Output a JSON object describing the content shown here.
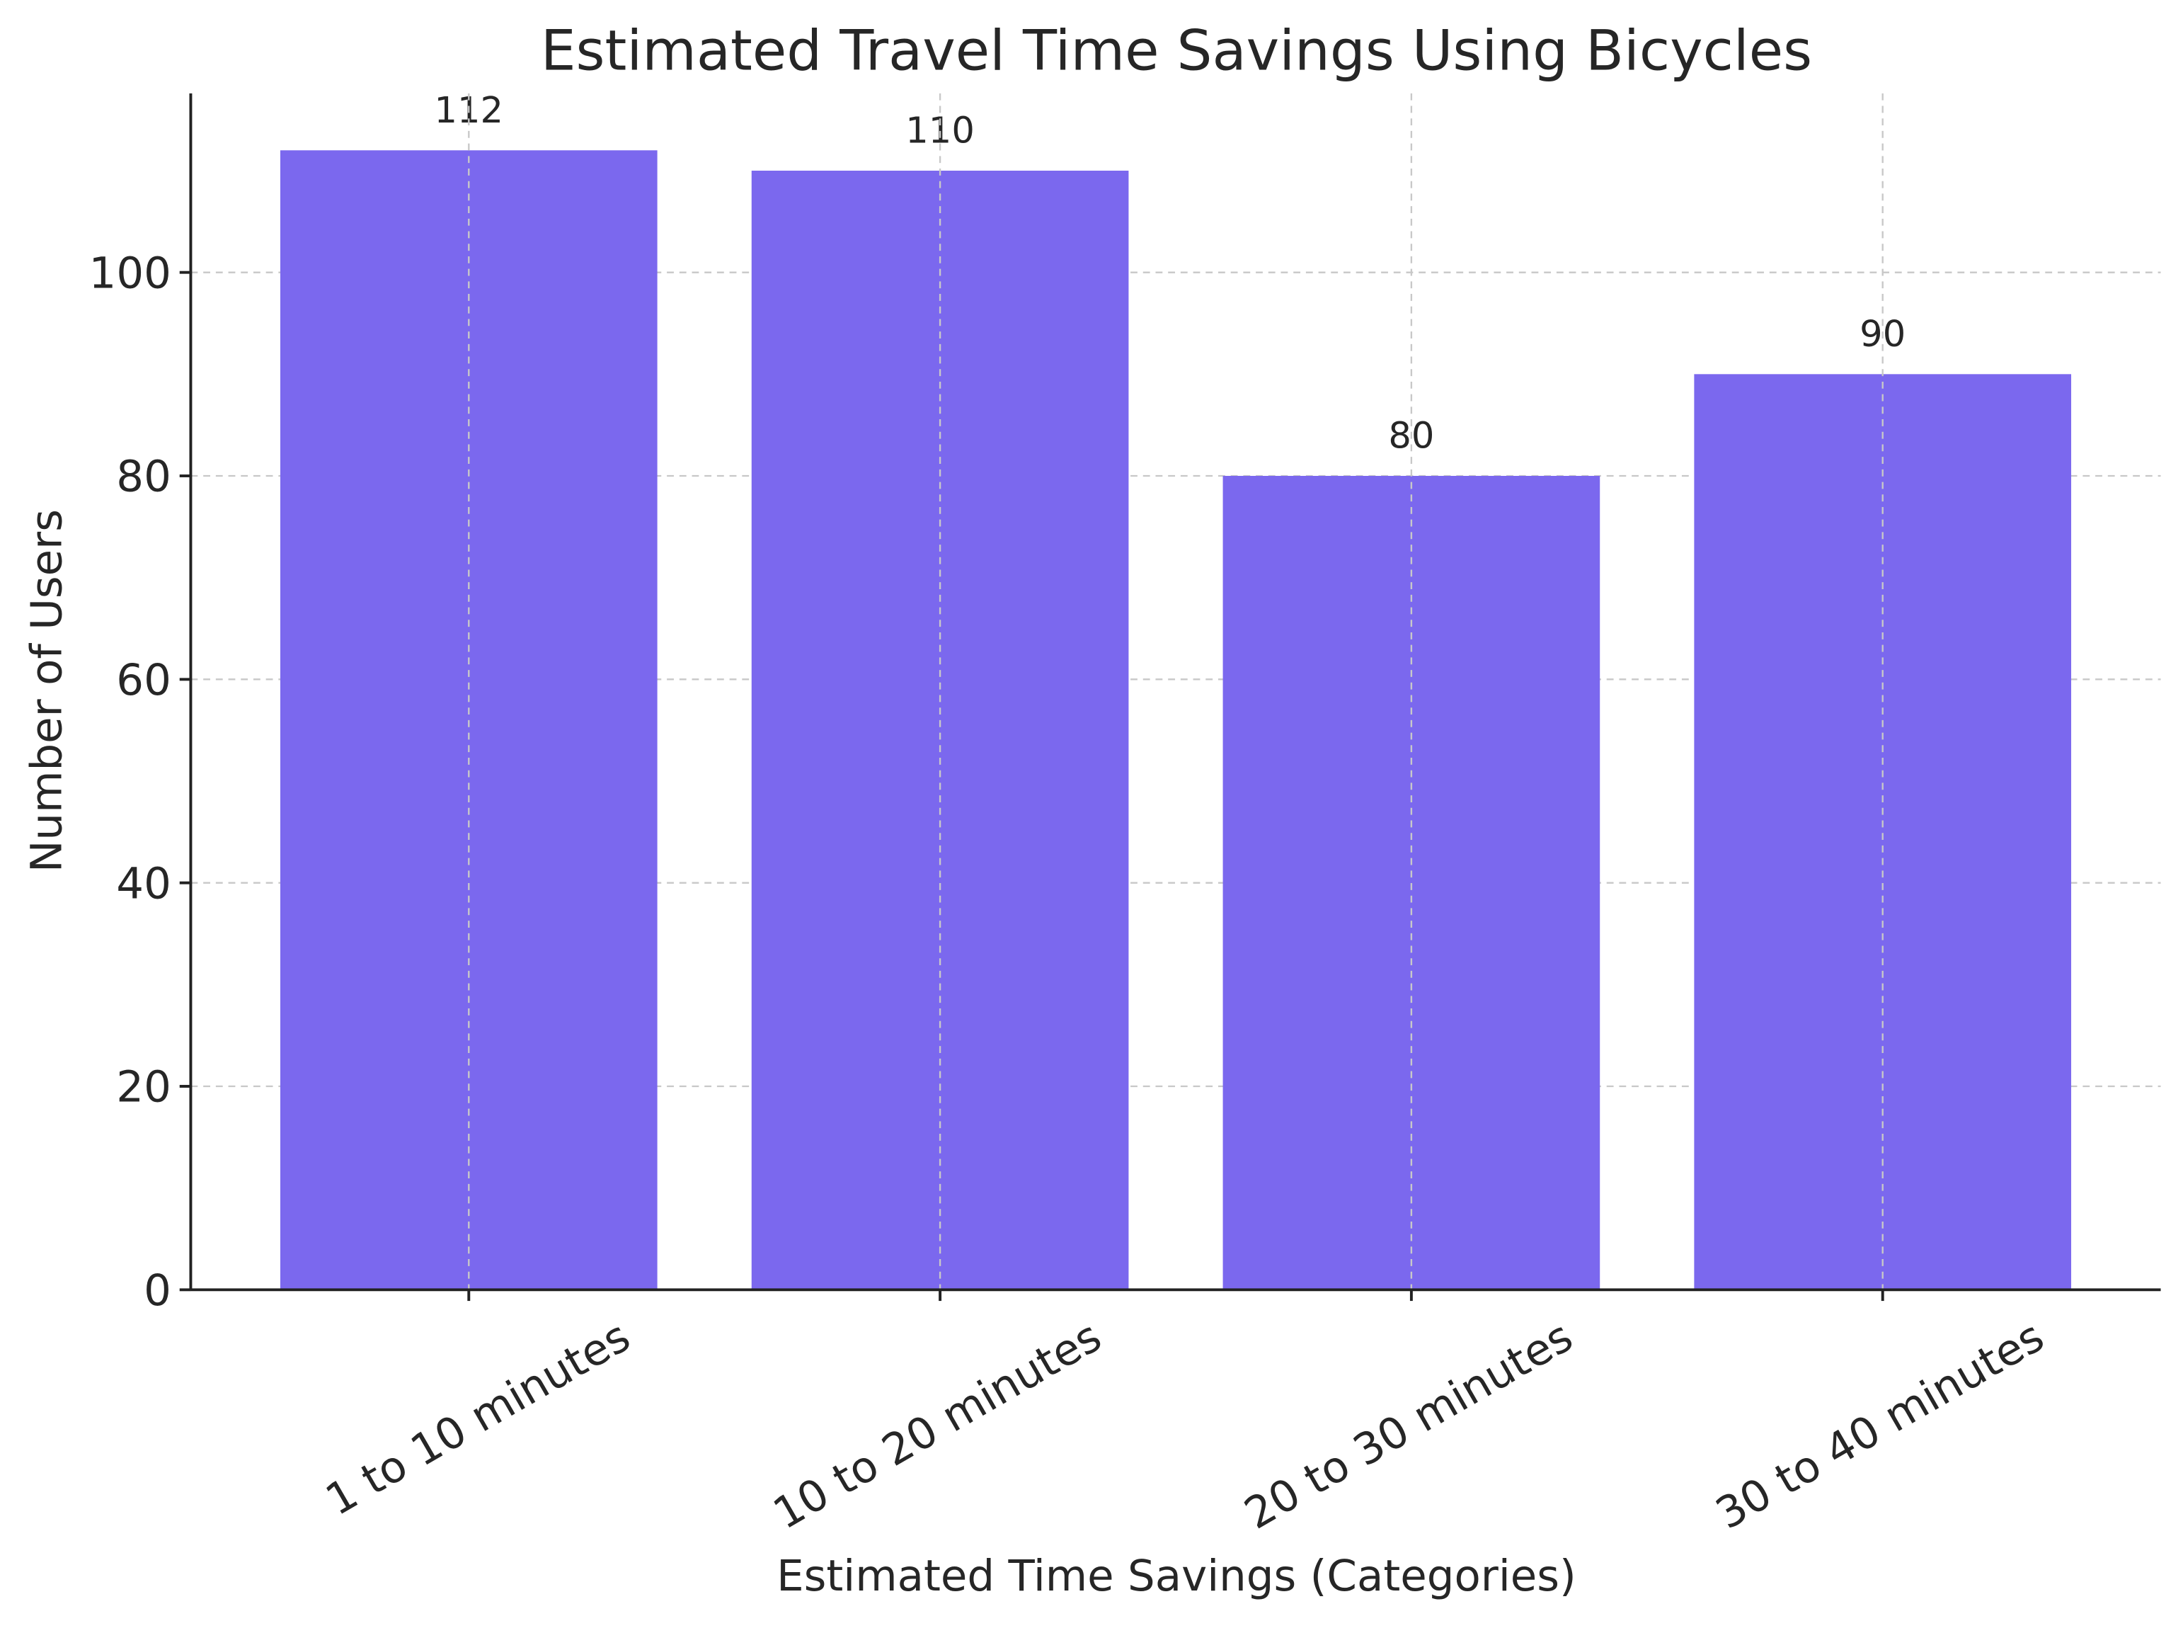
{
  "chart_data": {
    "type": "bar",
    "title": "Estimated Travel Time Savings Using Bicycles",
    "xlabel": "Estimated Time Savings (Categories)",
    "ylabel": "Number of Users",
    "categories": [
      "1 to 10 minutes",
      "10 to 20 minutes",
      "20 to 30 minutes",
      "30 to 40 minutes"
    ],
    "values": [
      112,
      110,
      80,
      90
    ],
    "color": "#7b68ee",
    "ylim": [
      0,
      117.6
    ],
    "yticks": [
      0,
      20,
      40,
      60,
      80,
      100
    ],
    "grid": true
  }
}
